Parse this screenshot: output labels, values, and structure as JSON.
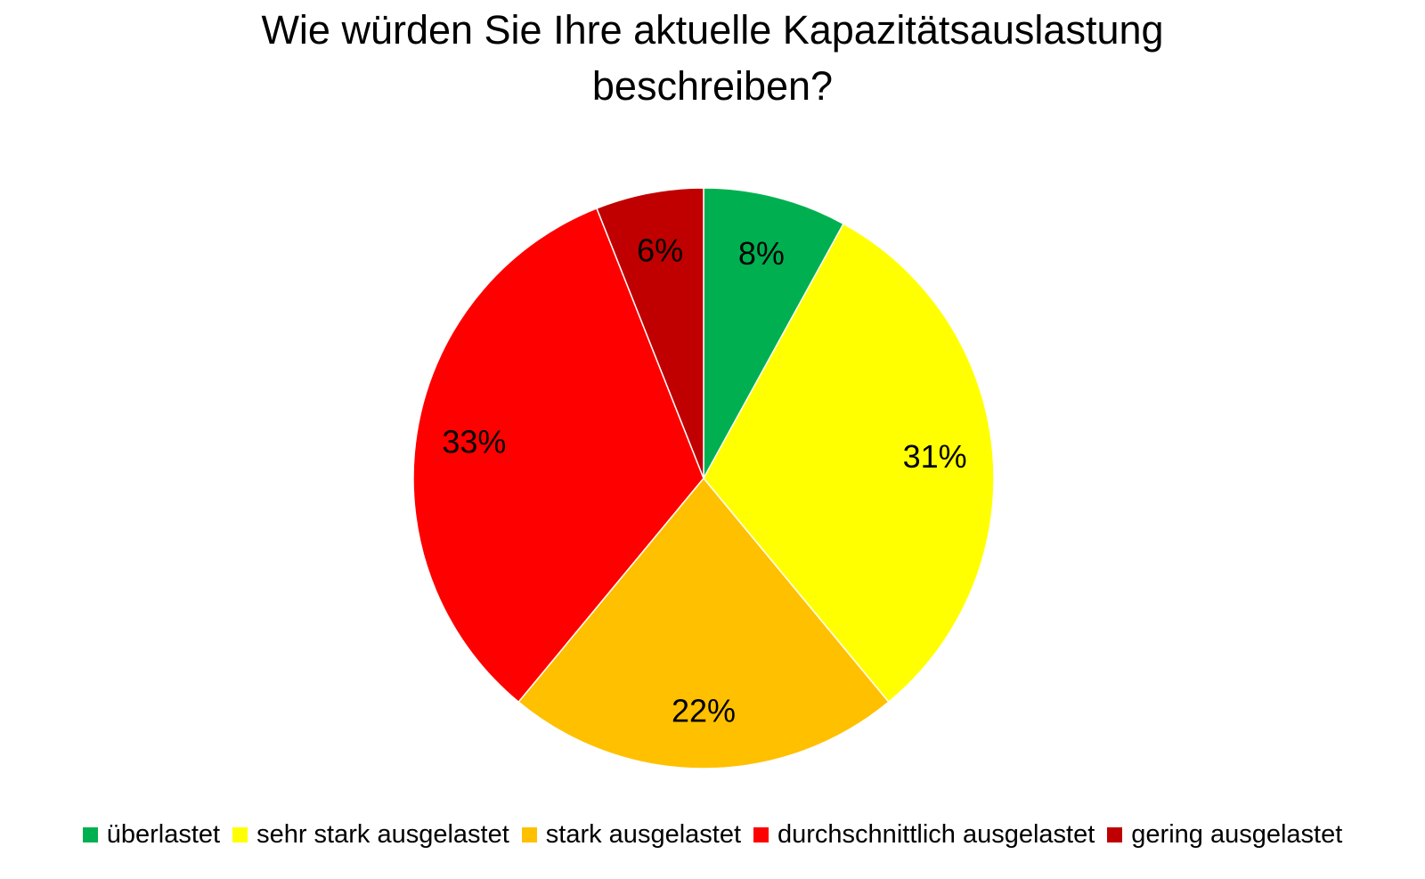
{
  "chart_data": {
    "type": "pie",
    "title": "Wie würden Sie Ihre aktuelle Kapazitätsauslastung beschreiben?",
    "title_lines": [
      "Wie würden Sie Ihre aktuelle Kapazitätsauslastung",
      "beschreiben?"
    ],
    "categories": [
      "überlastet",
      "sehr stark ausgelastet",
      "stark ausgelastet",
      "durchschnittlich ausgelastet",
      "gering ausgelastet"
    ],
    "values": [
      8,
      31,
      22,
      33,
      6
    ],
    "labels": [
      "8%",
      "31%",
      "22%",
      "33%",
      "6%"
    ],
    "colors": [
      "#00b050",
      "#ffff00",
      "#ffc000",
      "#ff0000",
      "#c00000"
    ],
    "unit": "%",
    "legend_position": "bottom",
    "start_angle": "12 o'clock",
    "direction": "clockwise"
  }
}
